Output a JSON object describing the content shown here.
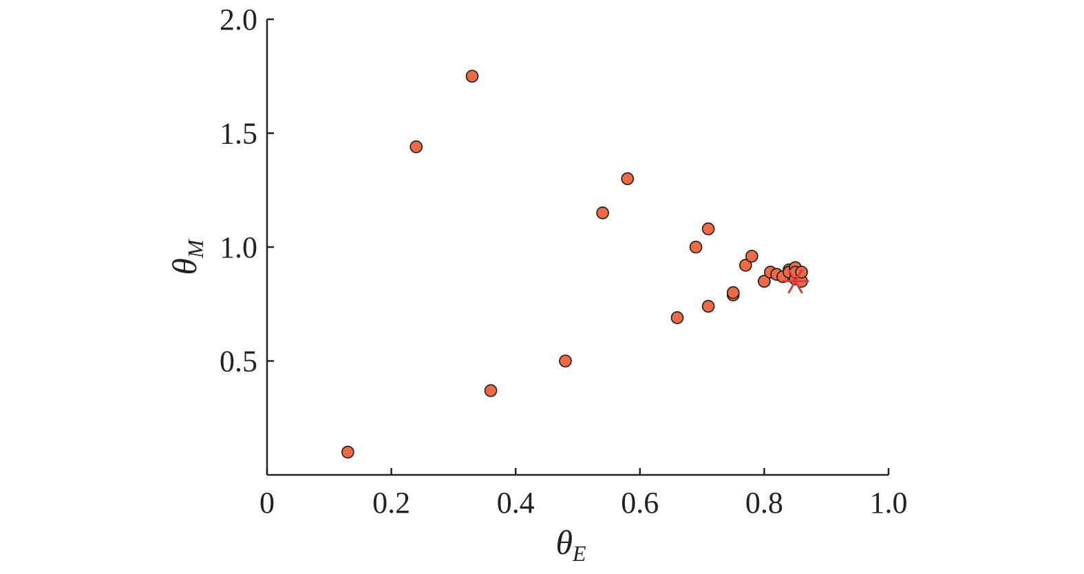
{
  "chart_data": {
    "type": "scatter",
    "title": "",
    "xlabel": {
      "symbol": "θ",
      "subscript": "E"
    },
    "ylabel": {
      "symbol": "θ",
      "subscript": "M"
    },
    "xlim": [
      0,
      1.0
    ],
    "ylim": [
      0,
      2.0
    ],
    "x_ticks": [
      0,
      0.2,
      0.4,
      0.6,
      0.8,
      1.0
    ],
    "x_tick_labels": [
      "0",
      "0.2",
      "0.4",
      "0.6",
      "0.8",
      "1.0"
    ],
    "y_ticks": [
      0.5,
      1.0,
      1.5,
      2.0
    ],
    "y_tick_labels": [
      "0.5",
      "1.0",
      "1.5",
      "2.0"
    ],
    "grid": false,
    "marker_color": "#ee6a45",
    "marker_edge": "#1a1a1a",
    "reference_color": "#e0393b",
    "series": [
      {
        "x": [
          0.13,
          0.24,
          0.33,
          0.36,
          0.48,
          0.54,
          0.58,
          0.66,
          0.69,
          0.71,
          0.71,
          0.75,
          0.75,
          0.77,
          0.78,
          0.8,
          0.8,
          0.81,
          0.82,
          0.83,
          0.84,
          0.84,
          0.85,
          0.85,
          0.85,
          0.86,
          0.86
        ],
        "y": [
          0.1,
          1.44,
          1.75,
          0.37,
          0.5,
          1.15,
          1.3,
          0.69,
          1.0,
          1.08,
          0.74,
          0.79,
          0.8,
          0.92,
          0.96,
          0.85,
          0.85,
          0.89,
          0.88,
          0.87,
          0.9,
          0.89,
          0.91,
          0.86,
          0.89,
          0.85,
          0.89
        ]
      }
    ],
    "reference_point": {
      "x": 0.85,
      "y": 0.85,
      "marker": "asterisk"
    }
  }
}
